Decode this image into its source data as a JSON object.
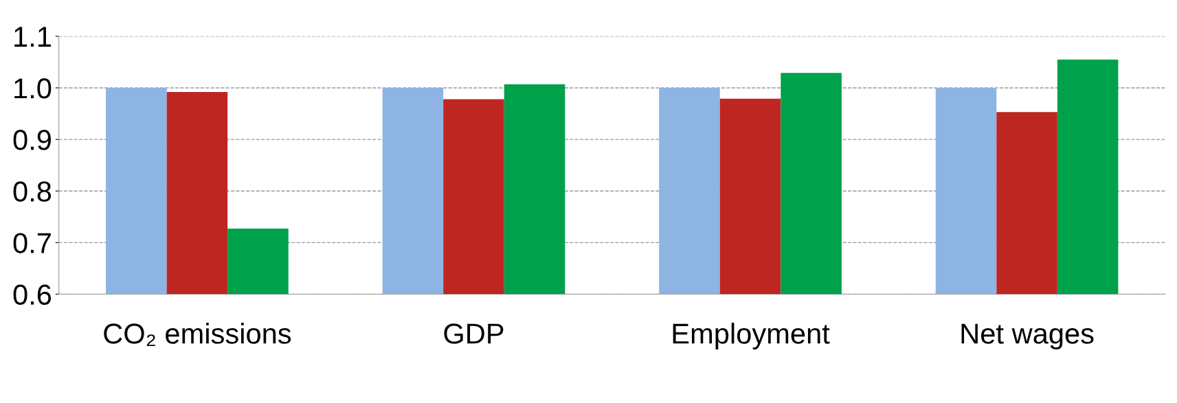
{
  "chart_data": {
    "type": "bar",
    "categories": [
      "CO₂ emissions",
      "GDP",
      "Employment",
      "Net wages"
    ],
    "series": [
      {
        "color": "#8eb4e3",
        "values": [
          1.0,
          1.0,
          1.0,
          1.0
        ]
      },
      {
        "color": "#be2621",
        "values": [
          0.992,
          0.978,
          0.979,
          0.953
        ]
      },
      {
        "color": "#00a14b",
        "values": [
          0.727,
          1.007,
          1.029,
          1.055
        ]
      }
    ],
    "ylim": [
      0.6,
      1.1
    ],
    "yticks": [
      0.6,
      0.7,
      0.8,
      0.9,
      {
        "value": 1.0,
        "label": "1.0"
      },
      1.1
    ],
    "grid": "y",
    "legend": false
  }
}
